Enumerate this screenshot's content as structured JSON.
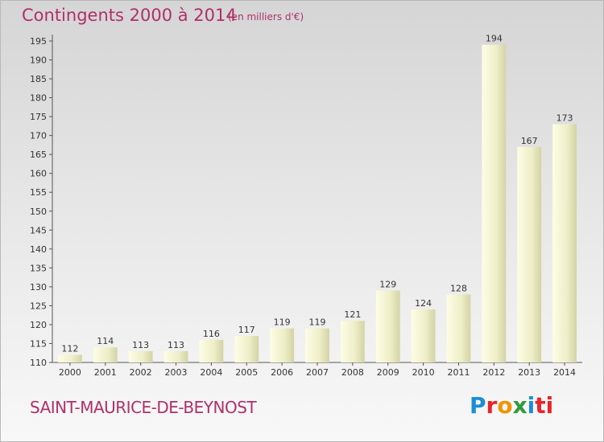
{
  "header": {
    "title": "Contingents 2000 à 2014",
    "unit": "(en milliers d'€)"
  },
  "footer": {
    "commune": "SAINT-MAURICE-DE-BEYNOST",
    "logo_letters": [
      "P",
      "r",
      "o",
      "x",
      "i",
      "ti"
    ]
  },
  "colors": {
    "accent": "#b0306a",
    "bar_light": "#fbfbe0",
    "bar_dark": "#d6d6a8",
    "axis": "#555555"
  },
  "chart_data": {
    "type": "bar",
    "categories": [
      "2000",
      "2001",
      "2002",
      "2003",
      "2004",
      "2005",
      "2006",
      "2007",
      "2008",
      "2009",
      "2010",
      "2011",
      "2012",
      "2013",
      "2014"
    ],
    "values": [
      112,
      114,
      113,
      113,
      116,
      117,
      119,
      119,
      121,
      129,
      124,
      128,
      194,
      167,
      173
    ],
    "ylim": [
      110,
      195
    ],
    "yticks": [
      110,
      115,
      120,
      125,
      130,
      135,
      140,
      145,
      150,
      155,
      160,
      165,
      170,
      175,
      180,
      185,
      190,
      195
    ],
    "grid": false,
    "legend": "none",
    "title": "Contingents 2000 à 2014"
  }
}
